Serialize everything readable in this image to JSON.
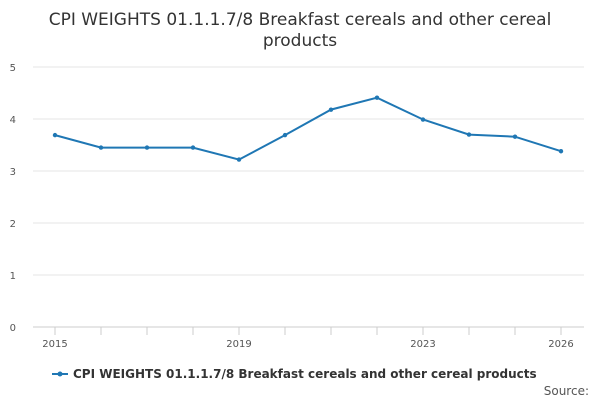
{
  "chart_data": {
    "type": "line",
    "title_lines": [
      "CPI WEIGHTS 01.1.1.7/8 Breakfast cereals and other cereal",
      "products"
    ],
    "x": [
      2015,
      2016,
      2017,
      2018,
      2019,
      2020,
      2021,
      2022,
      2023,
      2024,
      2025,
      2026
    ],
    "x_tick_labels": [
      "2015",
      "2019",
      "2023",
      "2026"
    ],
    "x_tick_values": [
      2015,
      2019,
      2023,
      2026
    ],
    "ylim": [
      0,
      5
    ],
    "y_ticks": [
      0,
      1,
      2,
      3,
      4,
      5
    ],
    "y_tick_labels": [
      "0",
      "1",
      "2",
      "3",
      "4",
      "5"
    ],
    "series": [
      {
        "name": "CPI WEIGHTS 01.1.1.7/8 Breakfast cereals and other cereal products",
        "values": [
          3.69,
          3.45,
          3.45,
          3.45,
          3.22,
          3.69,
          4.18,
          4.41,
          3.99,
          3.7,
          3.66,
          3.38
        ]
      }
    ],
    "grid": true,
    "legend": "bottom",
    "source_label": "Source:"
  },
  "colors": {
    "series": "#1f77b4",
    "grid": "#e6e6e6",
    "axis": "#cccccc"
  }
}
